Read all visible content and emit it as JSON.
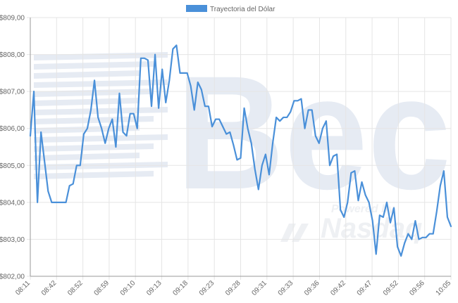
{
  "watermark": {
    "brand": "Bec",
    "powered": "Powered by",
    "partner": "Nasdaq"
  },
  "colors": {
    "series": "#4a90d9",
    "grid": "#e5e5e5",
    "axis": "#999999",
    "watermark": "#e6ebf3"
  },
  "chart_data": {
    "type": "line",
    "title": "",
    "xlabel": "",
    "ylabel": "",
    "legend_position": "top",
    "grid": true,
    "ylim": [
      802,
      809
    ],
    "yticks": [
      "$802,00",
      "$803,00",
      "$804,00",
      "$805,00",
      "$806,00",
      "$807,00",
      "$808,00",
      "$809,00"
    ],
    "xticks": [
      "08:11",
      "08:42",
      "08:52",
      "08:59",
      "09:10",
      "09:13",
      "09:18",
      "09:23",
      "09:28",
      "09:31",
      "09:33",
      "09:36",
      "09:42",
      "09:47",
      "09:52",
      "09:56",
      "10:05"
    ],
    "series": [
      {
        "name": "Trayectoria del Dólar",
        "values": [
          805.8,
          807.0,
          804.0,
          805.9,
          805.1,
          804.3,
          804.0,
          804.0,
          804.0,
          804.0,
          804.0,
          804.45,
          804.5,
          805.0,
          805.0,
          805.85,
          806.0,
          806.5,
          807.3,
          806.3,
          806.0,
          805.6,
          806.0,
          806.25,
          805.5,
          806.95,
          805.9,
          805.8,
          806.4,
          806.4,
          806.0,
          807.9,
          807.9,
          807.85,
          806.6,
          808.0,
          806.55,
          807.6,
          806.7,
          807.3,
          808.15,
          808.25,
          807.5,
          807.5,
          807.5,
          807.15,
          806.5,
          807.25,
          807.05,
          806.6,
          806.6,
          806.05,
          806.25,
          806.25,
          806.05,
          805.85,
          805.9,
          805.55,
          805.15,
          805.2,
          806.55,
          806.0,
          805.6,
          804.9,
          804.35,
          805.0,
          805.3,
          804.75,
          805.6,
          806.3,
          806.2,
          806.3,
          806.3,
          806.45,
          806.75,
          806.75,
          806.8,
          806.0,
          806.5,
          806.5,
          805.8,
          805.6,
          806.0,
          806.2,
          805.0,
          805.25,
          805.3,
          803.8,
          803.6,
          804.0,
          804.8,
          804.85,
          804.05,
          804.55,
          804.2,
          804.0,
          803.5,
          802.6,
          803.65,
          803.6,
          804.0,
          803.45,
          803.85,
          802.8,
          802.55,
          802.9,
          803.15,
          803.0,
          803.5,
          803.0,
          803.05,
          803.05,
          803.15,
          803.15,
          803.75,
          804.45,
          804.85,
          803.6,
          803.35
        ]
      }
    ]
  }
}
